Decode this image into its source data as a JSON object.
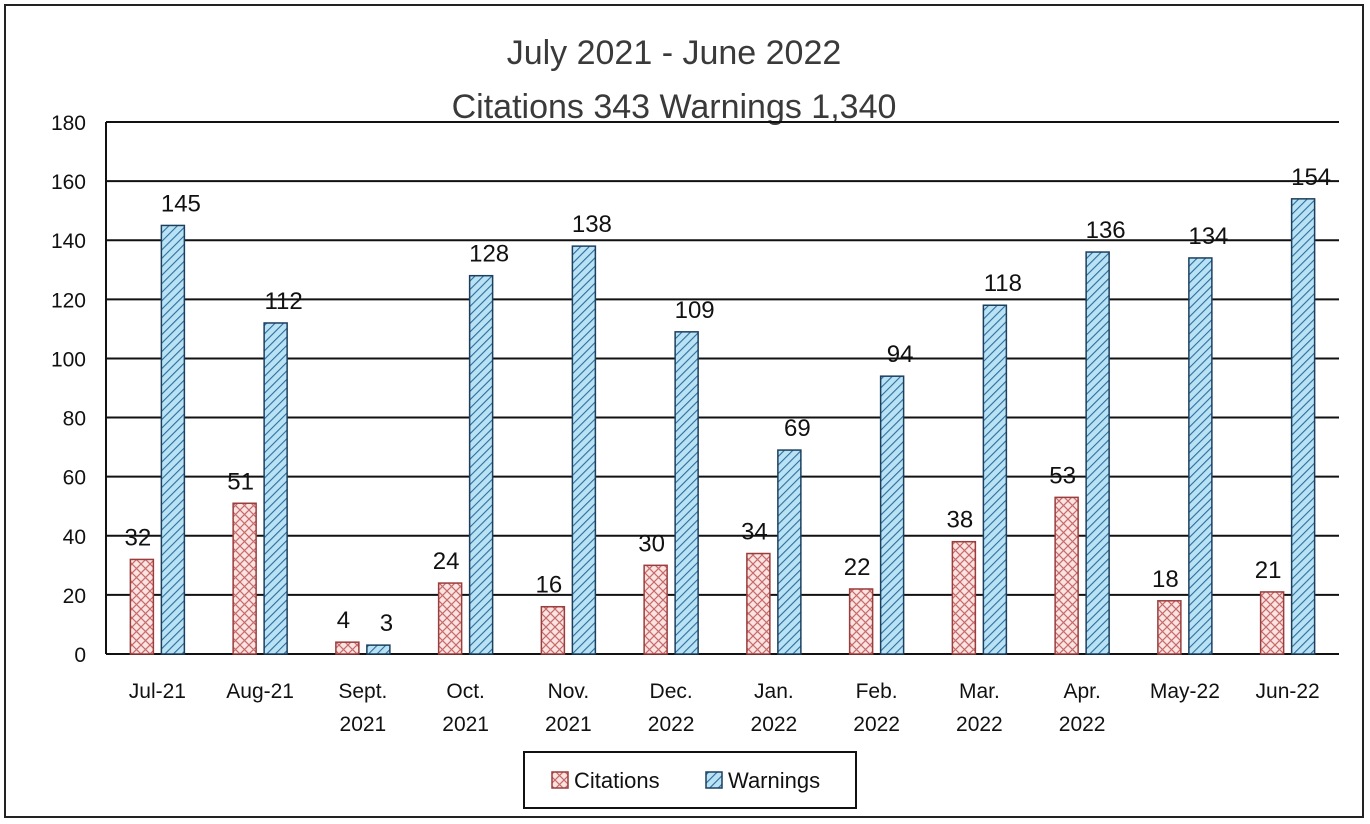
{
  "chart_data": {
    "type": "bar",
    "title_line1": "July 2021 - June 2022",
    "title_line2": "Citations 343  Warnings 1,340",
    "xlabel": "",
    "ylabel": "",
    "ylim": [
      0,
      180
    ],
    "yticks": [
      0,
      20,
      40,
      60,
      80,
      100,
      120,
      140,
      160,
      180
    ],
    "grid": true,
    "legend_position": "bottom",
    "categories": [
      [
        "Jul-21"
      ],
      [
        "Aug-21"
      ],
      [
        "Sept.",
        "2021"
      ],
      [
        "Oct.",
        "2021"
      ],
      [
        "Nov.",
        "2021"
      ],
      [
        "Dec.",
        "2022"
      ],
      [
        "Jan.",
        "2022"
      ],
      [
        "Feb.",
        "2022"
      ],
      [
        "Mar.",
        "2022"
      ],
      [
        "Apr.",
        "2022"
      ],
      [
        "May-22"
      ],
      [
        "Jun-22"
      ]
    ],
    "series": [
      {
        "name": "Citations",
        "color": "#f4c7c3",
        "stroke": "#b05050",
        "pattern": "crosshatch",
        "values": [
          32,
          51,
          4,
          24,
          16,
          30,
          34,
          22,
          38,
          53,
          18,
          21
        ]
      },
      {
        "name": "Warnings",
        "color": "#9fd3ee",
        "stroke": "#1f5f8b",
        "pattern": "diagonal",
        "values": [
          145,
          112,
          3,
          128,
          138,
          109,
          69,
          94,
          118,
          136,
          134,
          154
        ]
      }
    ]
  }
}
